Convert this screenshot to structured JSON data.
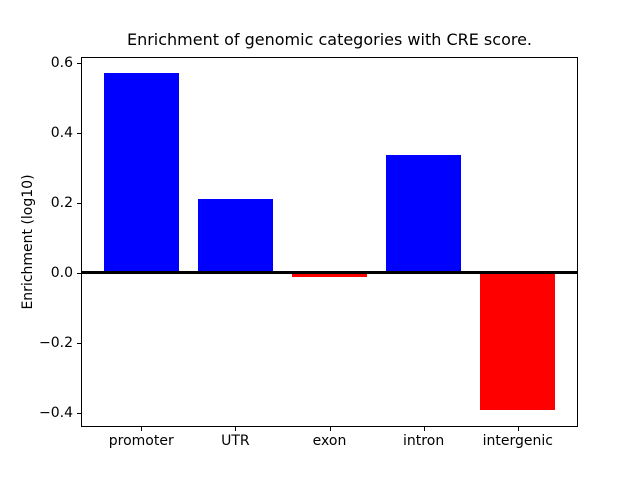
{
  "figure": {
    "title": "Enrichment of genomic categories with CRE score.",
    "ylabel": "Enrichment (log10)"
  },
  "chart_data": {
    "type": "bar",
    "title": "Enrichment of genomic categories with CRE score.",
    "xlabel": "",
    "ylabel": "Enrichment (log10)",
    "categories": [
      "promoter",
      "UTR",
      "exon",
      "intron",
      "intergenic"
    ],
    "values": [
      0.57,
      0.21,
      -0.013,
      0.335,
      -0.393
    ],
    "bar_colors": [
      "#0000ff",
      "#0000ff",
      "#ff0000",
      "#0000ff",
      "#ff0000"
    ],
    "positive_color": "#0000ff",
    "negative_color": "#ff0000",
    "ylim": [
      -0.441,
      0.616
    ],
    "yticks": [
      -0.4,
      -0.2,
      0.0,
      0.2,
      0.4,
      0.6
    ],
    "ytick_labels": [
      "−0.4",
      "−0.2",
      "0.0",
      "0.2",
      "0.4",
      "0.6"
    ],
    "grid": false,
    "legend": null,
    "zero_line": true,
    "bar_width_fraction": 0.8
  }
}
